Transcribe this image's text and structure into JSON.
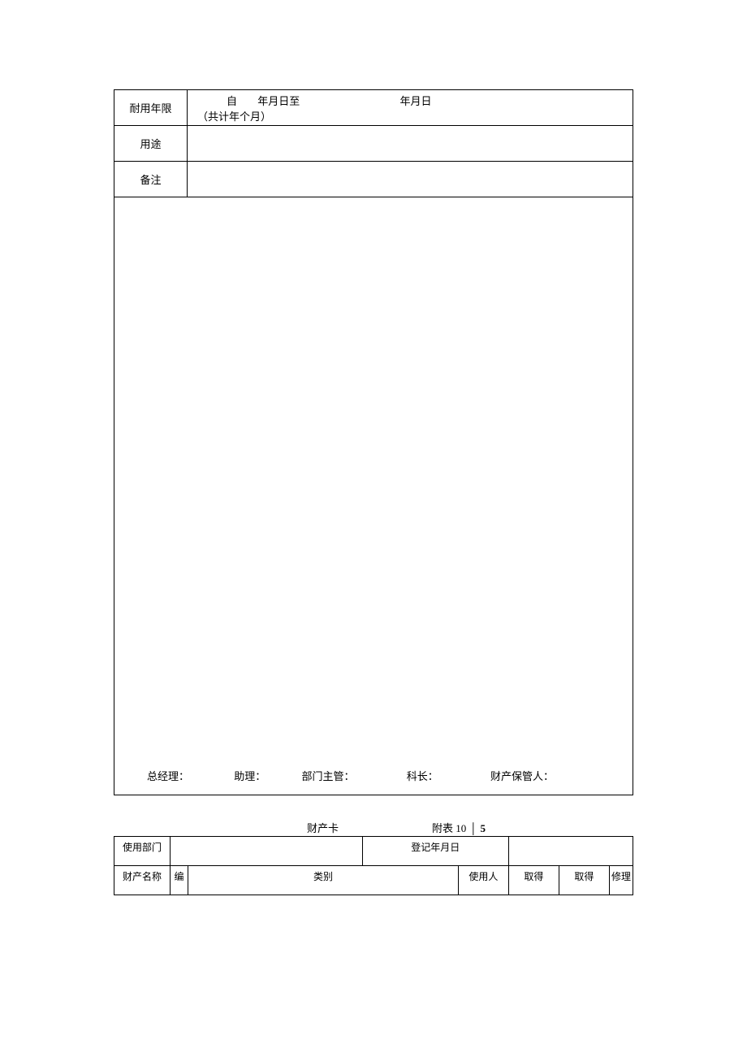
{
  "table1": {
    "row_durable_label": "耐用年限",
    "row_durable": {
      "from": "自",
      "ymd_to": "年月日至",
      "ymd": "年月日",
      "total": "（共计年个月）"
    },
    "row_usage_label": "用途",
    "row_remark_label": "备注",
    "signatures": {
      "gm": "总经理：",
      "asst": "助理：",
      "dept": "部门主管：",
      "chief": "科长：",
      "keeper": "财产保管人："
    }
  },
  "section2": {
    "title_left": "财产卡",
    "title_right_prefix": "附表 10",
    "title_right_sep": "·",
    "title_right_after": "5",
    "labels": {
      "dept": "使用部门",
      "reg": "登记年月日",
      "name": "财产名称",
      "num": "编",
      "cat": "类别",
      "user": "使用人",
      "get1": "取得",
      "get2": "取得",
      "repair": "修理"
    }
  },
  "style": {
    "border_color": "#000000",
    "bg_color": "#ffffff",
    "font_size_main": 13,
    "font_size_small": 12
  }
}
